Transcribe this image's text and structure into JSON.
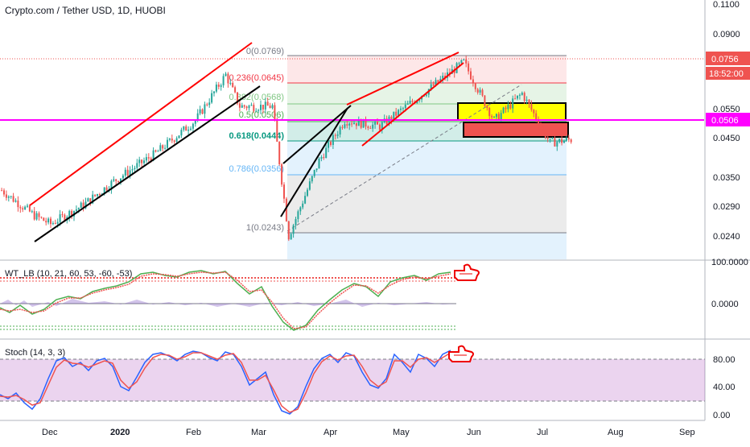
{
  "header": {
    "symbol_title": "Crypto.com / Tether USD, 1D, HUOBI"
  },
  "price_pane": {
    "axis_ticks": [
      "0.1100",
      "0.0900",
      "0.0550",
      "0.0450",
      "0.0350",
      "0.0290",
      "0.0240"
    ],
    "last_price_label": "0.0756",
    "countdown_label": "18:52:00",
    "magenta_level_label": "0.0506",
    "fib_levels": [
      {
        "label": "0(0.0769)",
        "value": 0.0769,
        "color": "#787b86"
      },
      {
        "label": "0.236(0.0645)",
        "value": 0.0645,
        "color": "#f23645"
      },
      {
        "label": "0.382(0.0568)",
        "value": 0.0568,
        "color": "#81c784"
      },
      {
        "label": "0.5(0.0506)",
        "value": 0.0506,
        "color": "#4caf50"
      },
      {
        "label": "0.618(0.0444)",
        "value": 0.0444,
        "color": "#089981"
      },
      {
        "label": "0.786(0.0356)",
        "value": 0.0356,
        "color": "#64b5f6"
      },
      {
        "label": "1(0.0243)",
        "value": 0.0243,
        "color": "#787b86"
      }
    ],
    "colors": {
      "up": "#26a69a",
      "down": "#ef5350",
      "magenta": "#ff00ff",
      "yellow_zone": "#ffff00",
      "red_zone": "#ef5350"
    }
  },
  "wt_pane": {
    "label": "WT_LB (10, 21, 60, 53, -60, -53)",
    "axis_ticks": [
      "100.0000",
      "0.0000"
    ]
  },
  "stoch_pane": {
    "label": "Stoch (14, 3, 3)",
    "axis_ticks": [
      "80.00",
      "40.00",
      "0.00"
    ]
  },
  "time_axis": [
    "Dec",
    "2020",
    "Feb",
    "Mar",
    "Apr",
    "May",
    "Jun",
    "Jul",
    "Aug",
    "Sep"
  ],
  "chart_data": {
    "type": "candlestick",
    "title": "Crypto.com / Tether USD, 1D, HUOBI",
    "y_scale": "log",
    "ylim": [
      0.0215,
      0.1115
    ],
    "anchors": [
      {
        "x": "2019-11-10",
        "y": 0.033
      },
      {
        "x": "2019-11-24",
        "y": 0.028
      },
      {
        "x": "2019-12-01",
        "y": 0.0265
      },
      {
        "x": "2019-12-15",
        "y": 0.03
      },
      {
        "x": "2019-12-28",
        "y": 0.035
      },
      {
        "x": "2020-01-15",
        "y": 0.042
      },
      {
        "x": "2020-02-01",
        "y": 0.052
      },
      {
        "x": "2020-02-14",
        "y": 0.07
      },
      {
        "x": "2020-02-20",
        "y": 0.057
      },
      {
        "x": "2020-03-05",
        "y": 0.057
      },
      {
        "x": "2020-03-12",
        "y": 0.0245
      },
      {
        "x": "2020-03-25",
        "y": 0.04
      },
      {
        "x": "2020-04-05",
        "y": 0.052
      },
      {
        "x": "2020-04-20",
        "y": 0.05
      },
      {
        "x": "2020-05-10",
        "y": 0.063
      },
      {
        "x": "2020-05-26",
        "y": 0.076
      },
      {
        "x": "2020-06-08",
        "y": 0.052
      },
      {
        "x": "2020-06-20",
        "y": 0.062
      },
      {
        "x": "2020-07-02",
        "y": 0.045
      },
      {
        "x": "2020-07-12",
        "y": 0.046
      }
    ]
  }
}
